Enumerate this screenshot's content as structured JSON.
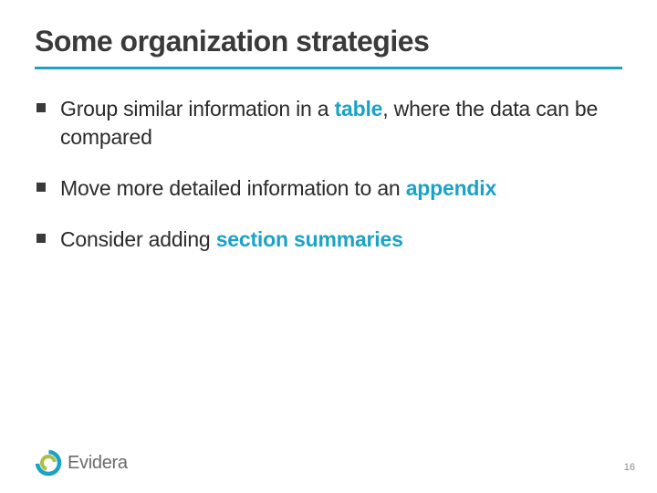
{
  "slide": {
    "title": "Some organization strategies",
    "underline_color": "#1aa3c6",
    "title_color": "#3a3a3a",
    "title_fontsize": 32,
    "body_fontsize": 23,
    "body_color": "#2b2b2b",
    "bold_color": "#1aa3c6",
    "bullets": [
      {
        "html": "Group similar information in a <b>table</b>, where the data can be compared"
      },
      {
        "html": "Move more detailed information to an <b>appendix</b>"
      },
      {
        "html": "Consider adding <b>section summaries</b>"
      }
    ]
  },
  "footer": {
    "logo_text": "Evidera",
    "logo_colors": {
      "ring_outer": "#1aa3c6",
      "ring_inner": "#a9c23f"
    },
    "page_number": "16"
  }
}
